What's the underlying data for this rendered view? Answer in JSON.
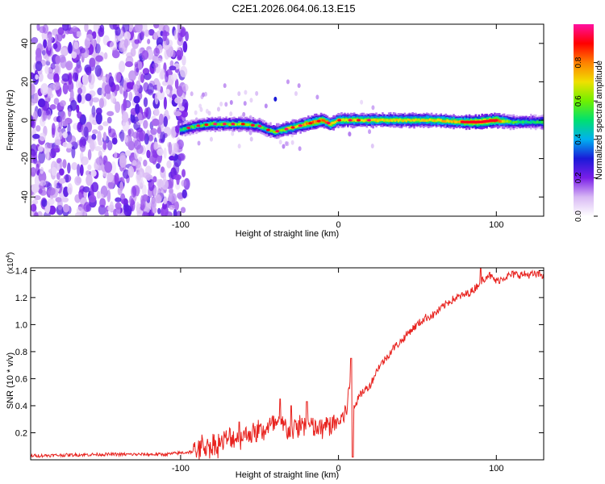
{
  "figure_title": "C2E1.2026.064.06.13.E15",
  "colors": {
    "snr_line": "#e8231f",
    "axis": "#000000",
    "spec_bg": "#ffffff"
  },
  "chart_data": [
    {
      "type": "heatmap",
      "title": "C2E1.2026.064.06.13.E15",
      "xlabel": "Height of straight line (km)",
      "ylabel": "Frequency (Hz)",
      "xlim": [
        -195,
        130
      ],
      "ylim": [
        -50,
        50
      ],
      "xticks": [
        -100,
        0,
        100
      ],
      "xtick_labels": [
        "-100",
        "0",
        "100"
      ],
      "yticks": [
        -40,
        -20,
        0,
        20,
        40
      ],
      "ytick_labels": [
        "-40",
        "-20",
        "0",
        "20",
        "40"
      ],
      "grid": false,
      "colorbar": {
        "label": "Normalized spectral amplitude",
        "range": [
          0,
          1
        ],
        "ticks": [
          0.0,
          0.2,
          0.4,
          0.6,
          0.8
        ],
        "tick_labels": [
          "0.0",
          "0.2",
          "0.4",
          "0.6",
          "0.8"
        ],
        "colormap": [
          "#ffffff",
          "#d8b8f4",
          "#7a1ee8",
          "#1a1ad8",
          "#00b0f0",
          "#00e070",
          "#70f000",
          "#f0e000",
          "#ff8000",
          "#ff0000",
          "#ff10a0"
        ]
      },
      "noise_region_x": [
        -195,
        -96
      ],
      "signal_trace": {
        "x": [
          -100,
          -90,
          -80,
          -70,
          -60,
          -50,
          -45,
          -40,
          -35,
          -30,
          -25,
          -20,
          -10,
          -5,
          0,
          10,
          20,
          40,
          60,
          80,
          90,
          100,
          110,
          120,
          130
        ],
        "freq_hz": [
          -5,
          -3,
          -2,
          -2,
          -2,
          -3,
          -5,
          -6,
          -5,
          -4,
          -3,
          -2,
          0,
          -2,
          0,
          0,
          0,
          0,
          0,
          -1,
          -1,
          0,
          -1,
          -1,
          -1
        ],
        "amplitude": [
          0.5,
          0.55,
          0.6,
          0.62,
          0.62,
          0.58,
          0.55,
          0.62,
          0.65,
          0.7,
          0.72,
          0.78,
          0.82,
          0.75,
          0.7,
          0.72,
          0.72,
          0.7,
          0.7,
          0.78,
          0.95,
          0.85,
          0.55,
          0.5,
          0.5
        ]
      }
    },
    {
      "type": "line",
      "xlabel": "Height of straight line (km)",
      "ylabel": "SNR (10 * v/v)",
      "y_multiplier": "(x10",
      "y_exponent": "4",
      "y_multiplier_close": ")",
      "xlim": [
        -195,
        130
      ],
      "ylim": [
        0,
        1.42
      ],
      "xticks": [
        -100,
        0,
        100
      ],
      "xtick_labels": [
        "-100",
        "0",
        "100"
      ],
      "yticks": [
        0.2,
        0.4,
        0.6,
        0.8,
        1.0,
        1.2,
        1.4
      ],
      "ytick_labels": [
        "0.2",
        "0.4",
        "0.6",
        "0.8",
        "1.0",
        "1.2",
        "1.4"
      ],
      "grid": false,
      "series": [
        {
          "name": "SNR",
          "x": [
            -195,
            -150,
            -110,
            -92,
            -86,
            -80,
            -70,
            -64,
            -55,
            -45,
            -38,
            -30,
            -22,
            -15,
            -10,
            -5,
            0,
            4,
            7,
            10,
            15,
            20,
            25,
            30,
            35,
            40,
            45,
            50,
            55,
            60,
            65,
            70,
            75,
            80,
            85,
            90,
            95,
            100,
            105,
            110,
            115,
            120,
            125,
            130
          ],
          "values": [
            0.03,
            0.04,
            0.04,
            0.06,
            0.1,
            0.1,
            0.15,
            0.17,
            0.2,
            0.23,
            0.27,
            0.21,
            0.27,
            0.23,
            0.23,
            0.26,
            0.28,
            0.33,
            0.53,
            0.4,
            0.5,
            0.55,
            0.68,
            0.75,
            0.83,
            0.88,
            0.95,
            1.0,
            1.05,
            1.07,
            1.12,
            1.17,
            1.2,
            1.22,
            1.25,
            1.32,
            1.37,
            1.32,
            1.35,
            1.37,
            1.37,
            1.37,
            1.37,
            1.37
          ]
        }
      ],
      "spikes": [
        {
          "x": 8,
          "y": 0.75
        },
        {
          "x": 9,
          "y": 0.02
        },
        {
          "x": -37,
          "y": 0.45
        },
        {
          "x": -30,
          "y": 0.4
        },
        {
          "x": -20,
          "y": 0.43
        },
        {
          "x": -63,
          "y": 0.28
        },
        {
          "x": 90,
          "y": 1.42
        }
      ]
    }
  ]
}
